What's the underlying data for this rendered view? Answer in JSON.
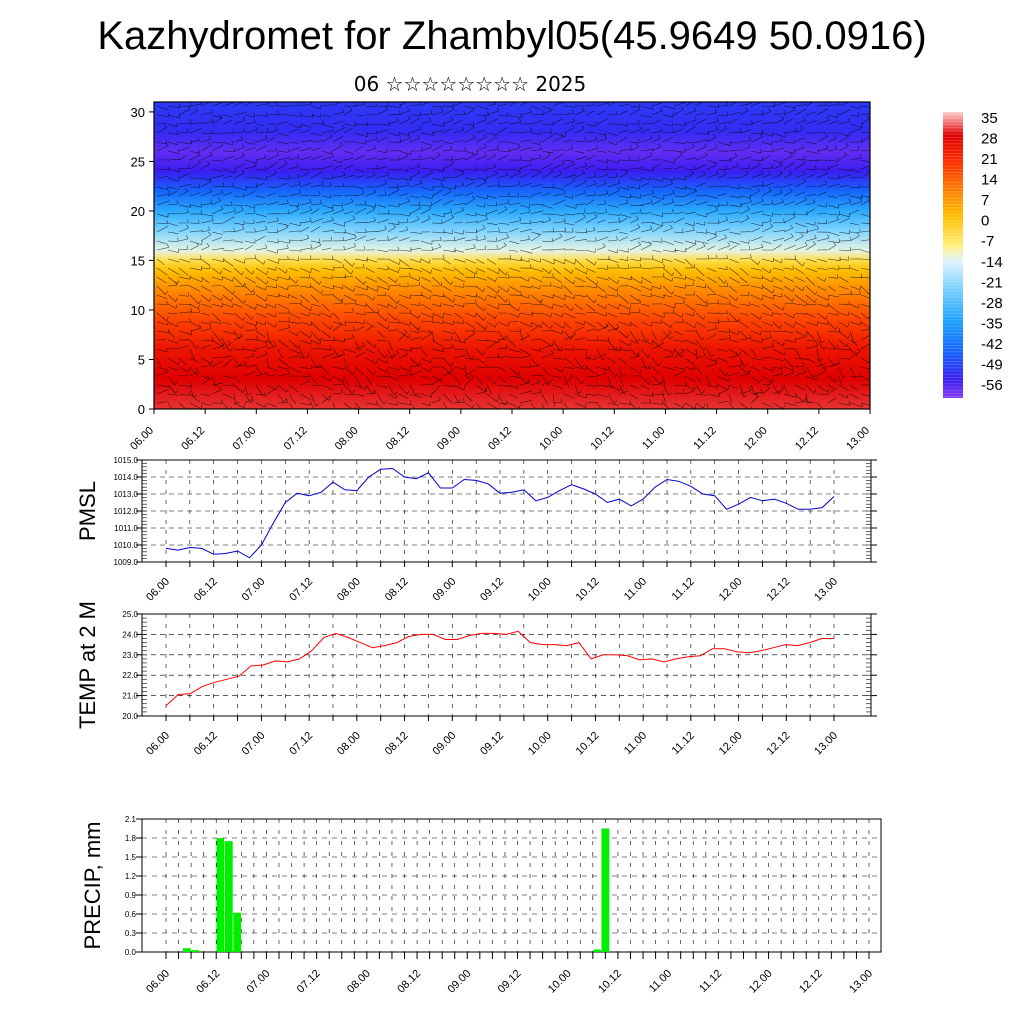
{
  "title": "Kazhydromet for Zhambyl05(45.9649 50.0916)",
  "subtitle": "06 ☆☆☆☆☆☆☆☆ 2025",
  "time_labels": [
    "06.00",
    "06.12",
    "07.00",
    "07.12",
    "08.00",
    "08.12",
    "09.00",
    "09.12",
    "10.00",
    "10.12",
    "11.00",
    "11.12",
    "12.00",
    "12.12",
    "13.00"
  ],
  "chart_data": [
    {
      "type": "heatmap",
      "name": "cross-section",
      "x_tick_labels": [
        "06.00",
        "06.12",
        "07.00",
        "07.12",
        "08.00",
        "08.12",
        "09.00",
        "09.12",
        "10.00",
        "10.12",
        "11.00",
        "11.12",
        "12.00",
        "12.12",
        "13.00"
      ],
      "y_ticks": [
        0,
        5,
        10,
        15,
        20,
        25,
        30
      ],
      "ylim": [
        0,
        31
      ],
      "temperature_profile_by_level": [
        [
          0,
          32
        ],
        [
          3,
          30
        ],
        [
          6,
          26
        ],
        [
          9,
          18
        ],
        [
          12,
          10
        ],
        [
          14,
          2
        ],
        [
          15,
          -4
        ],
        [
          16,
          -12
        ],
        [
          18,
          -22
        ],
        [
          20,
          -32
        ],
        [
          22,
          -44
        ],
        [
          24,
          -54
        ],
        [
          26,
          -57
        ],
        [
          28,
          -52
        ],
        [
          31,
          -50
        ]
      ],
      "colorbar_labels": [
        "35",
        "28",
        "21",
        "14",
        "7",
        "0",
        "-7",
        "-14",
        "-21",
        "-28",
        "-35",
        "-42",
        "-49",
        "-56"
      ],
      "colorbar_range": [
        -60,
        38
      ],
      "colors": [
        "#ffd0d0",
        "#e00000",
        "#ff3300",
        "#ff8a00",
        "#ffc000",
        "#fff080",
        "#e0f4ff",
        "#7fd4ff",
        "#1aa0ff",
        "#1565ff",
        "#3a1ef0",
        "#8a3cf5"
      ]
    },
    {
      "type": "line",
      "name": "pmsl",
      "ylabel": "PMSL",
      "ylim": [
        1009.0,
        1015.0
      ],
      "y_tick_labels": [
        "1009.0",
        "1010.0",
        "1011.0",
        "1012.0",
        "1013.0",
        "1014.0",
        "1015.0"
      ],
      "x_tick_labels": [
        "06.00",
        "06.12",
        "07.00",
        "07.12",
        "08.00",
        "08.12",
        "09.00",
        "09.12",
        "10.00",
        "10.12",
        "11.00",
        "11.12",
        "12.00",
        "12.12",
        "13.00"
      ],
      "line_color": "#0000cc",
      "values": [
        1009.8,
        1009.7,
        1009.85,
        1009.8,
        1009.45,
        1009.5,
        1009.65,
        1009.25,
        1010.0,
        1011.3,
        1012.5,
        1013.05,
        1012.9,
        1013.1,
        1013.7,
        1013.25,
        1013.2,
        1014.0,
        1014.45,
        1014.5,
        1014.0,
        1013.9,
        1014.25,
        1013.35,
        1013.35,
        1013.85,
        1013.8,
        1013.6,
        1013.05,
        1013.1,
        1013.25,
        1012.6,
        1012.8,
        1013.2,
        1013.55,
        1013.3,
        1013.0,
        1012.5,
        1012.7,
        1012.3,
        1012.7,
        1013.4,
        1013.85,
        1013.75,
        1013.45,
        1013.0,
        1012.9,
        1012.1,
        1012.4,
        1012.8,
        1012.6,
        1012.7,
        1012.45,
        1012.1,
        1012.1,
        1012.2,
        1012.85
      ]
    },
    {
      "type": "line",
      "name": "temp2m",
      "ylabel": "TEMP at 2 M",
      "ylim": [
        20.0,
        25.0
      ],
      "y_tick_labels": [
        "20.0",
        "21.0",
        "22.0",
        "23.0",
        "24.0",
        "25.0"
      ],
      "x_tick_labels": [
        "06.00",
        "06.12",
        "07.00",
        "07.12",
        "08.00",
        "08.12",
        "09.00",
        "09.12",
        "10.00",
        "10.12",
        "11.00",
        "11.12",
        "12.00",
        "12.12",
        "13.00"
      ],
      "line_color": "#ff0000",
      "values": [
        20.5,
        21.05,
        21.1,
        21.45,
        21.65,
        21.8,
        21.95,
        22.45,
        22.5,
        22.7,
        22.65,
        22.8,
        23.2,
        23.85,
        24.05,
        23.85,
        23.6,
        23.35,
        23.45,
        23.6,
        23.9,
        24.0,
        24.0,
        23.75,
        23.75,
        23.95,
        24.05,
        24.05,
        24.0,
        24.15,
        23.6,
        23.5,
        23.5,
        23.45,
        23.6,
        22.8,
        23.0,
        23.0,
        22.95,
        22.75,
        22.8,
        22.65,
        22.8,
        22.9,
        22.95,
        23.3,
        23.3,
        23.15,
        23.1,
        23.2,
        23.35,
        23.5,
        23.45,
        23.6,
        23.8,
        23.8
      ]
    },
    {
      "type": "bar",
      "name": "precip",
      "ylabel": "PRECIP, mm",
      "ylim": [
        0.0,
        2.1
      ],
      "y_tick_labels": [
        "0.0",
        "0.3",
        "0.6",
        "0.9",
        "1.2",
        "1.5",
        "1.8",
        "2.1"
      ],
      "x_tick_labels": [
        "06.00",
        "06.12",
        "07.00",
        "07.12",
        "08.00",
        "08.12",
        "09.00",
        "09.12",
        "10.00",
        "10.12",
        "11.00",
        "11.12",
        "12.00",
        "12.12",
        "13.00"
      ],
      "bar_color": "#00ee00",
      "values": [
        0,
        0,
        0.06,
        0.03,
        0,
        0,
        1.8,
        1.75,
        0.62,
        0,
        0,
        0,
        0,
        0,
        0,
        0,
        0,
        0,
        0,
        0,
        0,
        0,
        0,
        0,
        0,
        0,
        0,
        0,
        0,
        0,
        0,
        0,
        0,
        0,
        0,
        0,
        0,
        0,
        0,
        0,
        0,
        0,
        0,
        0,
        0,
        0,
        0,
        0,
        0,
        0,
        0,
        0.04,
        1.95,
        0,
        0,
        0,
        0,
        0,
        0,
        0,
        0,
        0,
        0,
        0,
        0,
        0,
        0,
        0,
        0,
        0,
        0,
        0,
        0,
        0,
        0,
        0,
        0,
        0,
        0,
        0,
        0,
        0,
        0,
        0
      ]
    }
  ]
}
